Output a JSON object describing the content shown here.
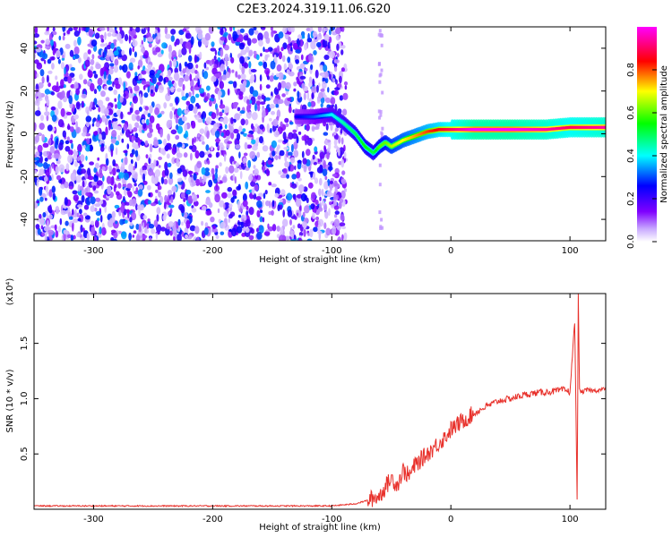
{
  "title": "C2E3.2024.319.11.06.G20",
  "chart_data": [
    {
      "type": "heatmap",
      "xlabel": "Height of straight line (km)",
      "ylabel": "Frequency (Hz)",
      "xlim": [
        -350,
        130
      ],
      "ylim": [
        -50,
        50
      ],
      "xticks": [
        -300,
        -200,
        -100,
        0,
        100
      ],
      "xtick_labels": [
        "-300",
        "-200",
        "-100",
        "0",
        "100"
      ],
      "yticks": [
        -40,
        -20,
        0,
        20,
        40
      ],
      "ytick_labels": [
        "-40",
        "-20",
        "0",
        "20",
        "40"
      ],
      "colorbar": {
        "label": "Normalized spectral amplitude",
        "range": [
          0,
          1
        ],
        "ticks": [
          0.0,
          0.2,
          0.4,
          0.6,
          0.8
        ],
        "tick_labels": [
          "0.0",
          "0.2",
          "0.4",
          "0.6",
          "0.8"
        ],
        "colors": [
          "#ffffff",
          "#7f00ff",
          "#0000ff",
          "#00ffff",
          "#00ff00",
          "#ffff00",
          "#ff0000",
          "#ff00ff"
        ]
      },
      "noise_region_x": [
        -350,
        -88
      ],
      "signal_track": {
        "x": [
          -130,
          -115,
          -100,
          -90,
          -80,
          -72,
          -65,
          -60,
          -55,
          -50,
          -40,
          -30,
          -20,
          -10,
          0,
          20,
          50,
          80,
          100,
          130
        ],
        "y": [
          8,
          8,
          9,
          5,
          0,
          -6,
          -9,
          -6,
          -4,
          -6,
          -3,
          -1,
          1,
          2,
          2,
          2,
          2,
          2,
          3,
          3
        ],
        "amplitude": [
          0.25,
          0.3,
          0.4,
          0.45,
          0.5,
          0.55,
          0.5,
          0.6,
          0.6,
          0.65,
          0.7,
          0.75,
          0.8,
          0.85,
          0.9,
          1.0,
          1.0,
          0.95,
          0.9,
          0.95
        ]
      }
    },
    {
      "type": "line",
      "xlabel": "Height of straight line (km)",
      "ylabel": "SNR (10 * v/v)",
      "multiplier": "(x10⁴)",
      "xlim": [
        -350,
        130
      ],
      "ylim": [
        0,
        1.95
      ],
      "xticks": [
        -300,
        -200,
        -100,
        0,
        100
      ],
      "xtick_labels": [
        "-300",
        "-200",
        "-100",
        "0",
        "100"
      ],
      "yticks": [
        0.5,
        1.0,
        1.5
      ],
      "ytick_labels": [
        "0.5",
        "1.0",
        "1.5"
      ],
      "series": [
        {
          "color": "#e8302a",
          "x": [
            -350,
            -300,
            -250,
            -200,
            -150,
            -100,
            -90,
            -80,
            -70,
            -60,
            -55,
            -50,
            -45,
            -40,
            -35,
            -30,
            -25,
            -20,
            -15,
            -10,
            -5,
            0,
            10,
            20,
            30,
            40,
            50,
            60,
            70,
            80,
            90,
            95,
            100,
            104,
            106,
            107,
            108,
            110,
            115,
            120,
            125,
            130
          ],
          "y": [
            0.03,
            0.03,
            0.03,
            0.03,
            0.03,
            0.03,
            0.04,
            0.05,
            0.08,
            0.12,
            0.2,
            0.28,
            0.22,
            0.35,
            0.3,
            0.4,
            0.45,
            0.5,
            0.55,
            0.6,
            0.65,
            0.72,
            0.8,
            0.87,
            0.93,
            0.98,
            1.0,
            1.03,
            1.05,
            1.06,
            1.07,
            1.08,
            1.06,
            1.7,
            0.1,
            1.95,
            1.07,
            1.06,
            1.08,
            1.07,
            1.08,
            1.09
          ]
        }
      ]
    }
  ]
}
